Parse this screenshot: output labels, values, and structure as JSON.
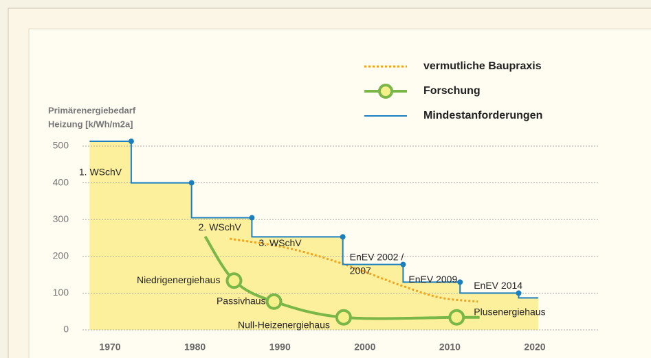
{
  "chart_data": {
    "type": "line",
    "y_axis_title": [
      "Primärenergiebedarf",
      "Heizung [k/Wh/m2a]"
    ],
    "xlim": [
      1970,
      2020
    ],
    "xticks": [
      1970,
      1980,
      1990,
      2000,
      2010,
      2020
    ],
    "ylim": [
      0,
      500
    ],
    "yticks": [
      0,
      100,
      200,
      300,
      400,
      500
    ],
    "grid": true,
    "legend": "top-right",
    "series": [
      {
        "name": "vermutliche Baupraxis",
        "color": "#f4a11a",
        "style": "dotted",
        "x": [
          1984.1,
          1991,
          1997.5,
          2004,
          2008.8,
          2013.3
        ],
        "values": [
          248,
          222,
          179,
          123,
          88,
          77
        ]
      },
      {
        "name": "Forschung",
        "color": "#7ab648",
        "style": "markers",
        "x": [
          1981.2,
          1984.6,
          1989.3,
          1997.5,
          2010.8,
          2013.5
        ],
        "values": [
          254,
          134,
          77,
          34,
          34,
          34
        ],
        "point_labels": [
          null,
          "Niedrigenergiehaus",
          "Passivhaus",
          "Null-Heizenergiehaus",
          "Plusenergiehaus",
          null
        ]
      },
      {
        "name": "Mindestanforderungen",
        "color": "#1a7fc1",
        "style": "step",
        "x": [
          1967.6,
          1972.5,
          1979.6,
          1986.7,
          1997.4,
          2004.5,
          2011.2,
          2018.1,
          2020.4
        ],
        "values": [
          513,
          513,
          400,
          305,
          253,
          178,
          130,
          100,
          87
        ],
        "point_labels": [
          null,
          null,
          "1. WSchV",
          "2. WSchV",
          "3. WSchV",
          "EnEV 2002 / 2007",
          "EnEV 2009",
          "EnEV 2014",
          null
        ]
      }
    ]
  }
}
